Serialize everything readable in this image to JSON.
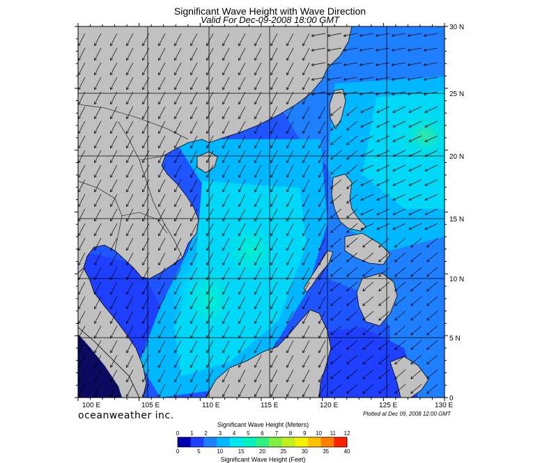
{
  "title": "Significant Wave Height with Wave Direction",
  "subtitle": "Valid For Dec-09-2008 18:00 GMT",
  "branding": "oceanweather inc.",
  "plotted": "Plotted at Dec 09, 2008 12:00 GMT",
  "map": {
    "lon_labels": [
      "100 E",
      "105 E",
      "110 E",
      "115 E",
      "120 E",
      "125 E",
      "130 E"
    ],
    "lat_labels": [
      "30 N",
      "25 N",
      "20 N",
      "15 N",
      "10 N",
      "5 N",
      "0"
    ],
    "lon_range": [
      100,
      130
    ],
    "lat_range": [
      0,
      30
    ],
    "land_color": "#c0c0c0",
    "sea_base_color": "#1f55ff"
  },
  "colorbar": {
    "title_meters": "Significant Wave Height (Meters)",
    "title_feet": "Significant Wave Height (Feet)",
    "meter_ticks": [
      "0",
      "1",
      "2",
      "3",
      "4",
      "5",
      "6",
      "7",
      "8",
      "9",
      "10",
      "11",
      "12"
    ],
    "feet_ticks": [
      "0",
      "5",
      "10",
      "15",
      "20",
      "25",
      "30",
      "35",
      "40"
    ],
    "colors": [
      "#0000b0",
      "#1f3fff",
      "#1f80ff",
      "#00b8ff",
      "#00e8f0",
      "#00f0c0",
      "#30f080",
      "#80f040",
      "#c0f020",
      "#f0f000",
      "#ffc000",
      "#ff8000",
      "#ff2000"
    ]
  }
}
